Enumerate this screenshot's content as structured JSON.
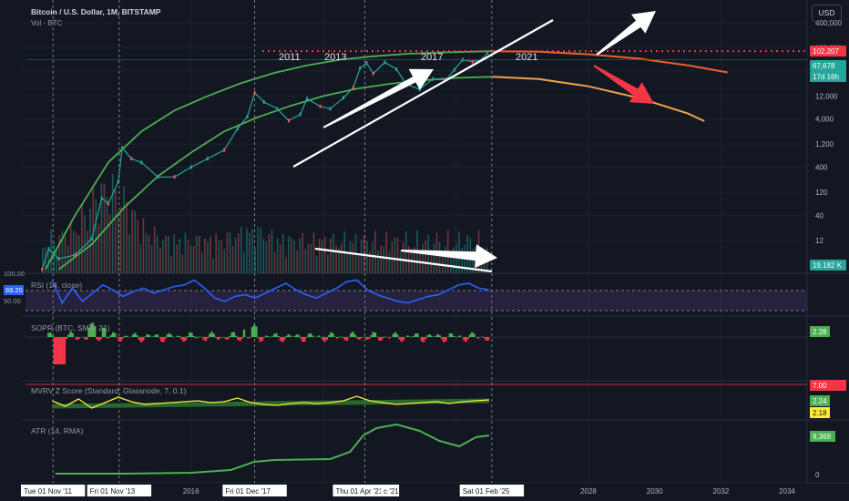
{
  "header": {
    "symbol": "Bitcoin / U.S. Dollar, 1M, BITSTAMP",
    "volume_label": "Vol · BTC",
    "currency": "USD"
  },
  "colors": {
    "background": "#131722",
    "grid": "#1e222d",
    "price_curve": "#4caf50",
    "rsi": "#2962ff",
    "atr": "#4caf50",
    "mvrv": "#ffeb3b",
    "sopr_up": "#4caf50",
    "sopr_down": "#f23645",
    "resistance": "#f23645",
    "arrow_white": "#ffffff",
    "arrow_red": "#f23645",
    "projection_upper": "#e8622e",
    "projection_lower": "#f0a04b"
  },
  "chart_data": [
    {
      "type": "line",
      "panel": "price",
      "title": "Bitcoin / U.S. Dollar, 1M, BITSTAMP",
      "yscale": "log",
      "y_ticks": [
        "400,000",
        "120,000",
        "40,000",
        "12,000",
        "4,000",
        "1,200",
        "400",
        "120",
        "40",
        "12"
      ],
      "ylim": [
        2.5,
        700000
      ],
      "x_ticks": [
        "2016",
        "2028",
        "2030",
        "2032",
        "2034"
      ],
      "x_highlight_labels": [
        "Tue 01 Nov '11",
        "Fri 01 Nov '13",
        "Fri 01 Dec '17",
        "Thu 01 Apr '21",
        "c '21",
        "Sat 01 Feb '25"
      ],
      "xlim": [
        2011.0,
        2034.6
      ],
      "annotations": [
        "2011",
        "2013",
        "2017",
        "2021"
      ],
      "price_labels": {
        "resistance": "102,207",
        "current": "67,678",
        "countdown": "17d 16h",
        "volume": "19.182 K"
      },
      "series": [
        {
          "x": [
            2011.5,
            2011.7,
            2012.0,
            2012.5,
            2013.0,
            2013.3,
            2013.5,
            2013.8,
            2013.92,
            2014.2,
            2014.5,
            2015.0,
            2015.5,
            2016.0,
            2016.5,
            2017.0,
            2017.4,
            2017.7,
            2017.92,
            2018.2,
            2018.6,
            2018.95,
            2019.3,
            2019.5,
            2019.9,
            2020.2,
            2020.6,
            2020.9,
            2021.1,
            2021.3,
            2021.5,
            2021.85,
            2022.2,
            2022.5,
            2022.9,
            2023.3,
            2023.7,
            2023.95,
            2024.2,
            2024.5,
            2024.8,
            2024.95
          ],
          "values": [
            3,
            8,
            5,
            6,
            13,
            90,
            70,
            200,
            1000,
            600,
            500,
            250,
            250,
            400,
            600,
            900,
            2500,
            4500,
            14000,
            9000,
            6500,
            3700,
            5000,
            10500,
            7300,
            6500,
            11000,
            18000,
            45000,
            58000,
            35000,
            60000,
            43000,
            21000,
            16500,
            27000,
            26000,
            42000,
            68000,
            62000,
            70000,
            95000
          ]
        }
      ]
    },
    {
      "type": "line",
      "panel": "rsi",
      "title": "RSI (14, close)",
      "levels": [
        "100.00",
        "50.00"
      ],
      "current": "69.20"
    },
    {
      "type": "area",
      "panel": "sopr",
      "title": "SOPR (BTC, SMA, 21)",
      "current": "2.28"
    },
    {
      "type": "line",
      "panel": "mvrv",
      "title": "MVRV Z Score (Standard, Glassnode, 7, 0.1)",
      "levels": [
        "7.00",
        "2.24",
        "2.18"
      ]
    },
    {
      "type": "line",
      "panel": "atr",
      "title": "ATR (14, RMA)",
      "current": "9,369",
      "zero": "0"
    }
  ]
}
